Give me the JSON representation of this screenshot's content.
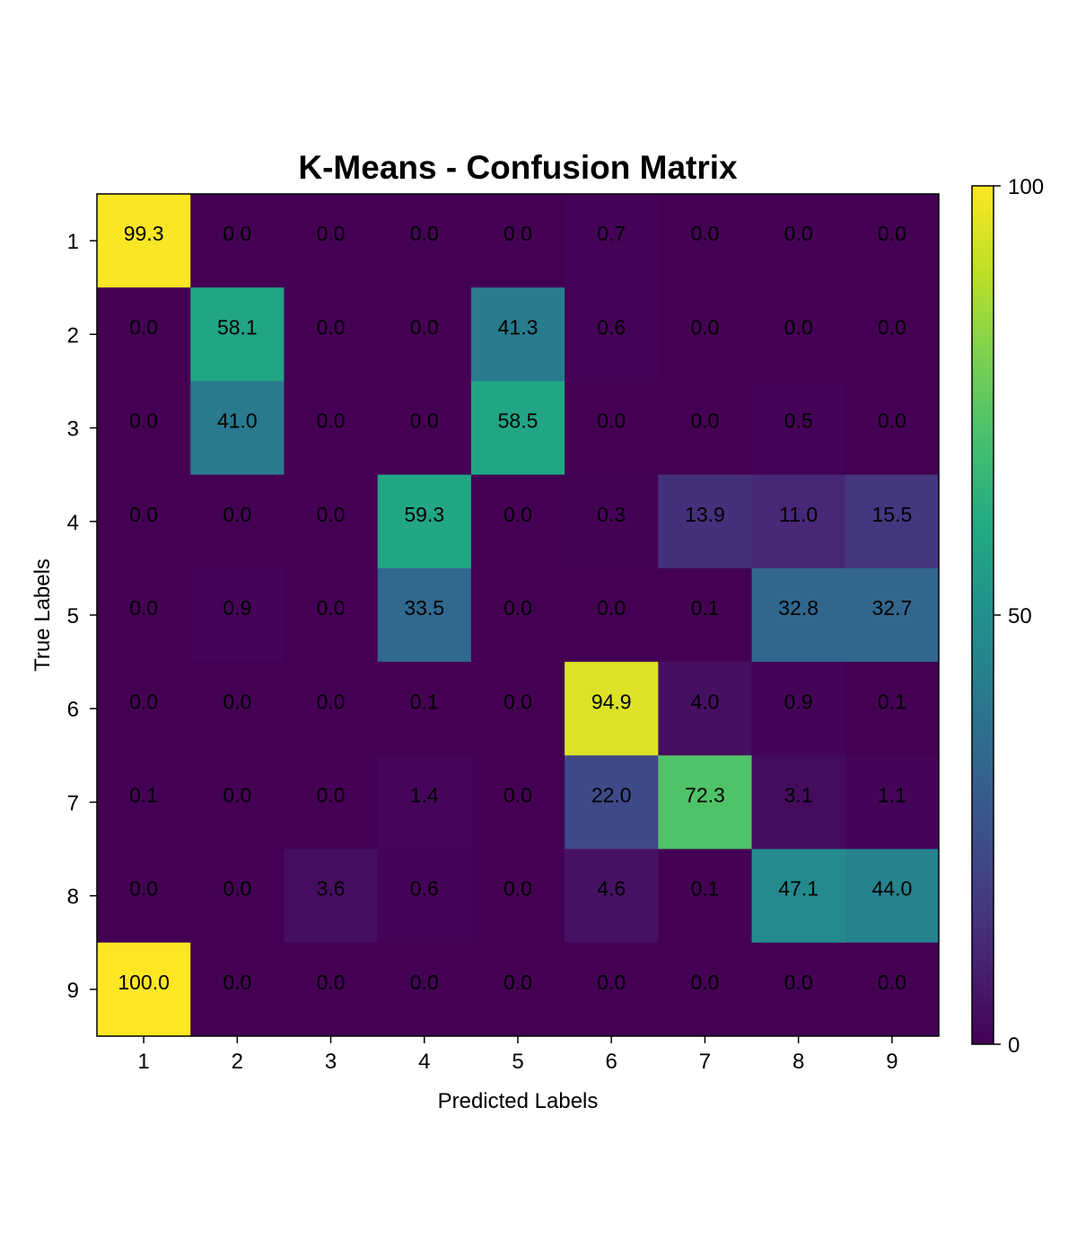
{
  "chart_data": {
    "type": "heatmap",
    "title": "K-Means - Confusion Matrix",
    "xlabel": "Predicted Labels",
    "ylabel": "True Labels",
    "x_categories": [
      "1",
      "2",
      "3",
      "4",
      "5",
      "6",
      "7",
      "8",
      "9"
    ],
    "y_categories": [
      "1",
      "2",
      "3",
      "4",
      "5",
      "6",
      "7",
      "8",
      "9"
    ],
    "values": [
      [
        99.3,
        0.0,
        0.0,
        0.0,
        0.0,
        0.7,
        0.0,
        0.0,
        0.0
      ],
      [
        0.0,
        58.1,
        0.0,
        0.0,
        41.3,
        0.6,
        0.0,
        0.0,
        0.0
      ],
      [
        0.0,
        41.0,
        0.0,
        0.0,
        58.5,
        0.0,
        0.0,
        0.5,
        0.0
      ],
      [
        0.0,
        0.0,
        0.0,
        59.3,
        0.0,
        0.3,
        13.9,
        11.0,
        15.5
      ],
      [
        0.0,
        0.9,
        0.0,
        33.5,
        0.0,
        0.0,
        0.1,
        32.8,
        32.7
      ],
      [
        0.0,
        0.0,
        0.0,
        0.1,
        0.0,
        94.9,
        4.0,
        0.9,
        0.1
      ],
      [
        0.1,
        0.0,
        0.0,
        1.4,
        0.0,
        22.0,
        72.3,
        3.1,
        1.1
      ],
      [
        0.0,
        0.0,
        3.6,
        0.6,
        0.0,
        4.6,
        0.1,
        47.1,
        44.0
      ],
      [
        100.0,
        0.0,
        0.0,
        0.0,
        0.0,
        0.0,
        0.0,
        0.0,
        0.0
      ]
    ],
    "value_format_decimals": 1,
    "colormap": "viridis",
    "colorbar": {
      "range": [
        0,
        100
      ],
      "ticks": [
        "0",
        "50",
        "100"
      ]
    },
    "grid": false
  }
}
